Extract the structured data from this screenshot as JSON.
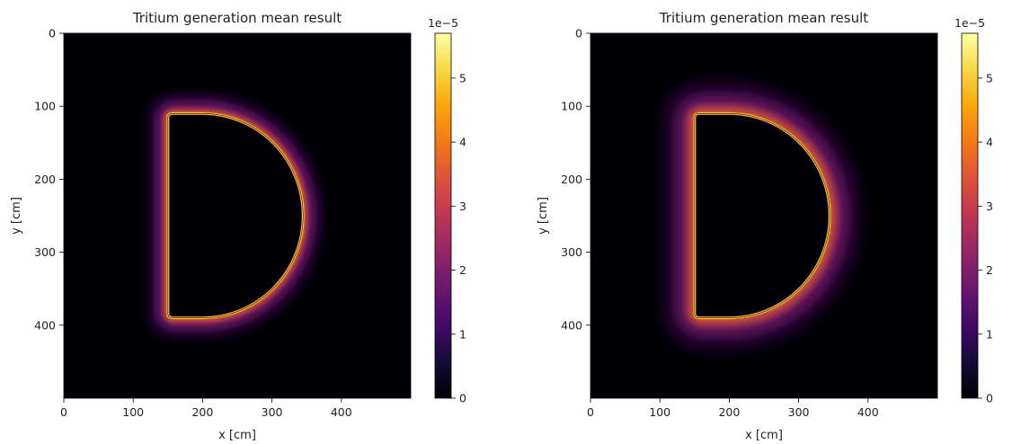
{
  "chart_data": [
    {
      "type": "heatmap",
      "title": "Tritium generation mean result",
      "xlabel": "x [cm]",
      "ylabel": "y [cm]",
      "xlim": [
        0,
        500
      ],
      "ylim": [
        500,
        0
      ],
      "xticks": [
        "0",
        "100",
        "200",
        "300",
        "400"
      ],
      "yticks": [
        "0",
        "100",
        "200",
        "300",
        "400"
      ],
      "colorbar": {
        "cmap": "inferno",
        "range": [
          0,
          5.7e-05
        ],
        "multiplier": "1e−5",
        "ticks": [
          "0",
          "1",
          "2",
          "3",
          "4",
          "5"
        ]
      },
      "shape": {
        "type": "D-section",
        "straight_edge_x": 150,
        "y_top": 110,
        "y_bottom": 390,
        "center_y": 250,
        "arc_center_x": 200,
        "arc_outer_x": 345,
        "peak_value": 5.7e-05,
        "glow_width": 22
      }
    },
    {
      "type": "heatmap",
      "title": "Tritium generation mean result",
      "xlabel": "x [cm]",
      "ylabel": "y [cm]",
      "xlim": [
        0,
        500
      ],
      "ylim": [
        500,
        0
      ],
      "xticks": [
        "0",
        "100",
        "200",
        "300",
        "400"
      ],
      "yticks": [
        "0",
        "100",
        "200",
        "300",
        "400"
      ],
      "colorbar": {
        "cmap": "inferno",
        "range": [
          0,
          5.7e-05
        ],
        "multiplier": "1e−5",
        "ticks": [
          "0",
          "1",
          "2",
          "3",
          "4",
          "5"
        ]
      },
      "shape": {
        "type": "D-section",
        "straight_edge_x": 150,
        "y_top": 110,
        "y_bottom": 390,
        "center_y": 250,
        "arc_center_x": 200,
        "arc_outer_x": 345,
        "peak_value": 5.7e-05,
        "glow_width": 34
      }
    }
  ]
}
